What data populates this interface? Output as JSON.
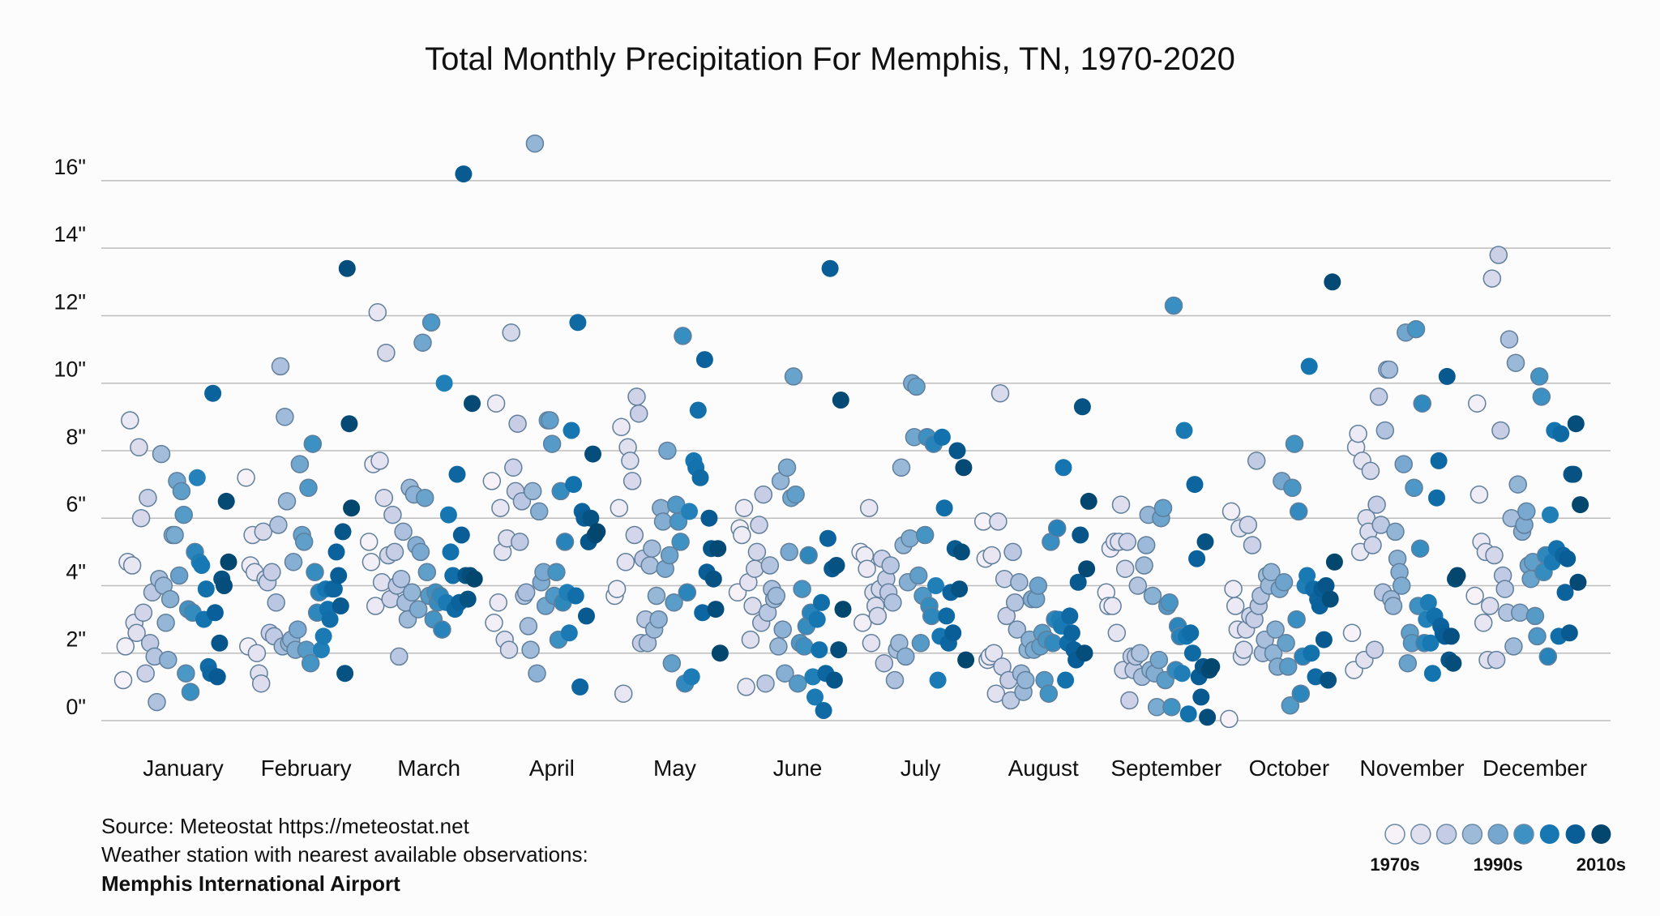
{
  "chart_data": {
    "type": "scatter",
    "title": "Total Monthly Precipitation For Memphis, TN, 1970-2020",
    "ylim": [
      0,
      17.5
    ],
    "yticks": [
      0,
      2,
      4,
      6,
      8,
      10,
      12,
      14,
      16
    ],
    "ytick_labels": [
      "0\"",
      "2\"",
      "4\"",
      "6\"",
      "8\"",
      "10\"",
      "12\"",
      "14\"",
      "16\""
    ],
    "grid": true,
    "categories": [
      "January",
      "February",
      "March",
      "April",
      "May",
      "June",
      "July",
      "August",
      "September",
      "October",
      "November",
      "December"
    ],
    "color_scale": {
      "colors": [
        "#f6f2f8",
        "#e1e0ef",
        "#c5cce5",
        "#9ebad9",
        "#76a8cf",
        "#3e92c3",
        "#1677b2",
        "#095e98",
        "#03466e"
      ],
      "labels": [
        "1970s",
        "1990s",
        "2010s"
      ],
      "label_positions": [
        0,
        4,
        8
      ]
    },
    "series_note": "values listed chronologically, 1970 to 2020",
    "months": [
      {
        "month": "January",
        "values": [
          1.2,
          2.2,
          4.7,
          8.9,
          4.6,
          2.9,
          2.6,
          8.1,
          6.0,
          3.2,
          1.4,
          6.6,
          2.3,
          3.8,
          1.9,
          0.55,
          4.2,
          7.9,
          4.0,
          2.9,
          1.8,
          3.6,
          5.5,
          5.5,
          7.1,
          4.3,
          6.8,
          6.1,
          1.4,
          3.3,
          0.85,
          3.2,
          5.0,
          7.2,
          4.7,
          4.6,
          3.0,
          3.9,
          1.6,
          1.4,
          9.7,
          3.2,
          1.3,
          2.3,
          4.2,
          4.0,
          6.5,
          4.7
        ]
      },
      {
        "month": "February",
        "values": [
          7.2,
          2.2,
          4.6,
          5.5,
          4.4,
          2.0,
          1.4,
          1.1,
          5.6,
          4.2,
          4.1,
          2.6,
          4.4,
          2.5,
          3.5,
          5.8,
          10.5,
          2.2,
          9.0,
          6.5,
          2.3,
          2.4,
          4.7,
          2.1,
          2.7,
          7.6,
          5.5,
          5.3,
          2.1,
          6.9,
          1.7,
          8.2,
          4.4,
          3.2,
          3.8,
          2.1,
          2.5,
          3.9,
          3.3,
          3.0,
          3.9,
          3.9,
          5.0,
          4.3,
          3.4,
          5.6,
          1.4,
          13.4,
          8.8,
          6.3
        ]
      },
      {
        "month": "March",
        "values": [
          5.3,
          4.7,
          7.6,
          3.4,
          12.1,
          7.7,
          4.1,
          6.6,
          10.9,
          4.9,
          3.6,
          6.1,
          5.0,
          4.0,
          1.9,
          4.2,
          5.6,
          3.5,
          3.0,
          6.9,
          3.8,
          6.7,
          5.2,
          3.3,
          5.0,
          11.2,
          6.6,
          4.4,
          3.7,
          11.8,
          3.0,
          3.8,
          3.5,
          3.7,
          2.7,
          10.0,
          3.5,
          6.1,
          5.0,
          4.3,
          3.3,
          7.3,
          3.5,
          5.5,
          16.2,
          4.3,
          3.6,
          4.3,
          9.4,
          4.2
        ]
      },
      {
        "month": "April",
        "values": [
          7.1,
          2.9,
          9.4,
          3.5,
          6.3,
          5.0,
          2.4,
          5.4,
          2.1,
          11.5,
          7.5,
          6.8,
          8.8,
          5.3,
          6.5,
          3.7,
          3.8,
          2.8,
          2.1,
          6.8,
          17.1,
          1.4,
          6.2,
          4.1,
          4.4,
          3.4,
          8.9,
          8.9,
          8.2,
          3.7,
          4.4,
          2.4,
          6.8,
          3.5,
          5.3,
          3.8,
          2.6,
          8.6,
          7.0,
          3.7,
          11.8,
          1.0,
          6.2,
          6.0,
          3.1,
          5.3,
          6.0,
          7.9,
          5.5,
          5.6
        ]
      },
      {
        "month": "May",
        "values": [
          3.7,
          3.9,
          6.3,
          8.7,
          0.8,
          4.7,
          8.1,
          7.7,
          7.1,
          5.5,
          9.6,
          9.1,
          2.3,
          4.8,
          3.0,
          2.3,
          4.6,
          5.1,
          2.7,
          3.7,
          3.0,
          6.3,
          5.9,
          4.5,
          8.0,
          4.9,
          1.7,
          3.5,
          6.4,
          5.9,
          5.3,
          11.4,
          1.1,
          3.8,
          6.2,
          1.3,
          7.7,
          7.5,
          9.2,
          7.2,
          3.2,
          10.7,
          4.4,
          6.0,
          5.1,
          4.2,
          3.3,
          5.1,
          2.0
        ]
      },
      {
        "month": "June",
        "values": [
          3.8,
          5.7,
          5.5,
          6.3,
          1.0,
          4.1,
          2.4,
          3.4,
          4.5,
          5.0,
          5.8,
          2.9,
          6.7,
          1.1,
          3.2,
          4.6,
          3.9,
          3.6,
          3.7,
          2.2,
          7.1,
          2.7,
          1.4,
          7.5,
          5.0,
          6.6,
          10.2,
          6.7,
          1.1,
          2.3,
          3.9,
          2.2,
          2.8,
          4.9,
          3.2,
          1.3,
          0.7,
          3.0,
          2.1,
          3.5,
          0.3,
          1.4,
          5.4,
          13.4,
          4.5,
          1.2,
          4.6,
          2.1,
          9.5,
          3.3
        ]
      },
      {
        "month": "July",
        "values": [
          5.0,
          2.9,
          4.9,
          4.5,
          6.3,
          2.3,
          3.8,
          3.4,
          3.1,
          3.9,
          4.8,
          1.7,
          4.2,
          3.8,
          4.6,
          3.5,
          1.2,
          2.1,
          2.3,
          7.5,
          5.2,
          1.9,
          4.1,
          5.4,
          10.0,
          8.4,
          9.9,
          4.3,
          2.3,
          3.7,
          5.5,
          8.4,
          3.4,
          3.1,
          8.2,
          4.0,
          1.2,
          2.5,
          8.4,
          6.3,
          3.1,
          2.3,
          3.8,
          2.6,
          5.1,
          8.0,
          3.9,
          5.0,
          7.5,
          1.8
        ]
      },
      {
        "month": "August",
        "values": [
          5.9,
          4.8,
          1.8,
          1.9,
          4.9,
          2.0,
          0.8,
          5.9,
          9.7,
          1.6,
          4.2,
          3.1,
          1.2,
          0.6,
          5.0,
          3.5,
          2.7,
          4.1,
          1.4,
          0.85,
          1.2,
          2.1,
          2.4,
          3.6,
          2.1,
          3.6,
          4.0,
          2.2,
          2.6,
          1.2,
          2.4,
          0.8,
          5.3,
          2.3,
          3.0,
          5.7,
          3.0,
          2.8,
          7.5,
          1.2,
          2.3,
          3.1,
          2.6,
          2.1,
          1.8,
          4.1,
          5.5,
          9.3,
          2.0,
          4.5,
          6.5
        ]
      },
      {
        "month": "September",
        "values": [
          3.8,
          3.4,
          5.1,
          3.4,
          5.3,
          2.6,
          5.3,
          6.4,
          1.5,
          4.5,
          5.3,
          0.6,
          1.9,
          1.5,
          1.9,
          4.0,
          2.0,
          1.3,
          4.6,
          5.2,
          6.1,
          1.5,
          3.7,
          1.4,
          0.4,
          1.8,
          6.0,
          6.3,
          1.2,
          3.4,
          3.5,
          0.4,
          12.3,
          1.5,
          2.8,
          2.5,
          1.4,
          8.6,
          2.5,
          0.2,
          2.6,
          2.0,
          7.0,
          4.8,
          1.3,
          0.7,
          1.6,
          5.3,
          0.1,
          1.5,
          1.6
        ]
      },
      {
        "month": "October",
        "values": [
          0.05,
          6.2,
          3.9,
          3.4,
          2.7,
          5.7,
          1.9,
          2.1,
          2.7,
          5.8,
          3.1,
          5.2,
          3.0,
          7.7,
          3.4,
          3.7,
          2.0,
          2.4,
          4.3,
          4.0,
          4.4,
          2.0,
          2.7,
          1.6,
          3.9,
          7.1,
          4.1,
          2.3,
          1.6,
          0.45,
          6.9,
          8.2,
          3.0,
          6.2,
          0.8,
          1.9,
          4.0,
          4.3,
          10.5,
          2.0,
          3.9,
          1.3,
          3.6,
          3.4,
          3.9,
          2.4,
          4.0,
          1.2,
          3.6,
          13.0,
          4.7
        ]
      },
      {
        "month": "November",
        "values": [
          2.6,
          1.5,
          8.1,
          8.5,
          5.0,
          7.7,
          1.8,
          6.0,
          5.6,
          7.4,
          5.2,
          2.1,
          6.4,
          9.6,
          5.8,
          3.8,
          8.6,
          10.4,
          10.4,
          3.6,
          3.4,
          5.6,
          4.8,
          4.4,
          4.0,
          7.6,
          11.5,
          1.7,
          2.6,
          2.3,
          6.9,
          11.6,
          3.4,
          5.1,
          9.4,
          2.3,
          3.0,
          3.5,
          2.3,
          1.4,
          3.1,
          6.6,
          7.7,
          2.8,
          2.6,
          2.5,
          10.2,
          1.8,
          2.5,
          1.7,
          4.2,
          4.3
        ]
      },
      {
        "month": "December",
        "values": [
          3.7,
          9.4,
          6.7,
          5.3,
          2.9,
          5.0,
          1.8,
          3.4,
          13.1,
          4.9,
          1.8,
          13.8,
          8.6,
          4.3,
          3.9,
          3.2,
          11.3,
          6.0,
          2.2,
          10.6,
          7.0,
          3.2,
          5.6,
          5.8,
          6.2,
          4.6,
          4.2,
          4.7,
          3.1,
          2.5,
          10.2,
          9.6,
          4.4,
          4.9,
          1.9,
          6.1,
          4.7,
          8.6,
          5.1,
          2.5,
          8.5,
          4.9,
          3.8,
          4.8,
          2.6,
          7.3,
          7.3,
          8.8,
          4.1,
          6.4
        ]
      }
    ]
  },
  "footer": {
    "source": "Source: Meteostat https://meteostat.net",
    "station_note": "Weather station with nearest available observations:",
    "station_name": "Memphis International Airport"
  }
}
